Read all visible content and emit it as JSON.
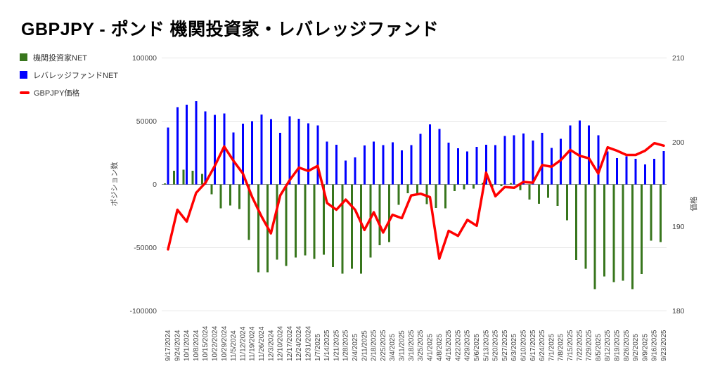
{
  "title": "GBPJPY - ポンド 機関投資家・レバレッジファンド",
  "legend": {
    "items": [
      {
        "label": "機関投資家NET",
        "color": "#38761d",
        "marker": "square"
      },
      {
        "label": "レバレッジファンドNET",
        "color": "#0000ff",
        "marker": "square"
      },
      {
        "label": "GBPJPY価格",
        "color": "#ff0000",
        "marker": "line"
      }
    ]
  },
  "colors": {
    "grid": "#e6e6e6",
    "zero_line": "#999999",
    "axis_text": "#444444",
    "background": "#ffffff"
  },
  "chart_data": {
    "type": "combo",
    "title": "GBPJPY - ポンド 機関投資家・レバレッジファンド",
    "legend_position": "top-left",
    "grid": true,
    "categories": [
      "9/17/2024",
      "9/24/2024",
      "10/1/2024",
      "10/8/2024",
      "10/15/2024",
      "10/22/2024",
      "10/29/2024",
      "11/5/2024",
      "11/12/2024",
      "11/19/2024",
      "11/26/2024",
      "12/3/2024",
      "12/10/2024",
      "12/17/2024",
      "12/24/2024",
      "12/31/2024",
      "1/7/2025",
      "1/14/2025",
      "1/21/2025",
      "1/28/2025",
      "2/4/2025",
      "2/11/2025",
      "2/18/2025",
      "2/25/2025",
      "3/4/2025",
      "3/11/2025",
      "3/18/2025",
      "3/25/2025",
      "4/1/2025",
      "4/8/2025",
      "4/15/2025",
      "4/22/2025",
      "4/29/2025",
      "5/6/2025",
      "5/13/2025",
      "5/20/2025",
      "5/27/2025",
      "6/3/2025",
      "6/10/2025",
      "6/17/2025",
      "6/24/2025",
      "7/1/2025",
      "7/8/2025",
      "7/15/2025",
      "7/22/2025",
      "7/29/2025",
      "8/5/2025",
      "8/12/2025",
      "8/19/2025",
      "8/26/2025",
      "9/2/2025",
      "9/9/2025",
      "9/16/2025",
      "9/23/2025"
    ],
    "series": [
      {
        "name": "機関投資家NET",
        "type": "bar",
        "axis": "left",
        "color": "#38761d",
        "values": [
          900,
          10700,
          11700,
          10800,
          8400,
          -7900,
          -19000,
          -16600,
          -19500,
          -44000,
          -69400,
          -69400,
          -59400,
          -64400,
          -57900,
          -56000,
          -58800,
          -55600,
          -65300,
          -70500,
          -66700,
          -70500,
          -57700,
          -48000,
          -45500,
          -16200,
          -7000,
          -7500,
          -15500,
          -18500,
          -18900,
          -5400,
          -4000,
          -3200,
          1500,
          -2000,
          -1500,
          1000,
          -4500,
          -12000,
          -15300,
          -10500,
          -17000,
          -28200,
          -59700,
          -66800,
          -82900,
          -72700,
          -77300,
          -76000,
          -82900,
          -70800,
          -44500,
          -45500
        ]
      },
      {
        "name": "レバレッジファンドNET",
        "type": "bar",
        "axis": "left",
        "color": "#0000ff",
        "values": [
          45000,
          61000,
          63000,
          65800,
          57900,
          55100,
          56000,
          41200,
          48000,
          50100,
          55400,
          51800,
          40800,
          53800,
          51900,
          48400,
          46800,
          34000,
          31500,
          18800,
          21400,
          30700,
          33800,
          31000,
          33200,
          27000,
          31000,
          39900,
          47500,
          43800,
          33100,
          28600,
          26100,
          29600,
          31400,
          31200,
          38400,
          38800,
          40300,
          34700,
          40700,
          28800,
          36000,
          46600,
          50500,
          46800,
          39000,
          26200,
          20800,
          22100,
          20300,
          15700,
          20300,
          26400
        ]
      },
      {
        "name": "GBPJPY価格",
        "type": "line",
        "axis": "right",
        "color": "#ff0000",
        "values": [
          187.3,
          192.0,
          190.6,
          194.0,
          195.2,
          197.2,
          199.5,
          197.8,
          196.3,
          193.5,
          191.2,
          189.2,
          193.7,
          195.5,
          197.0,
          196.6,
          197.2,
          192.8,
          192.0,
          193.2,
          192.0,
          189.6,
          191.7,
          189.3,
          191.4,
          191.0,
          193.7,
          193.9,
          193.5,
          186.2,
          189.5,
          188.9,
          190.8,
          190.1,
          196.4,
          193.6,
          194.7,
          194.6,
          195.3,
          195.2,
          197.3,
          197.1,
          197.9,
          199.1,
          198.4,
          198.1,
          196.3,
          199.4,
          199.0,
          198.5,
          198.5,
          199.0,
          199.9,
          199.6
        ]
      }
    ],
    "left_axis": {
      "title": "ポジション数",
      "min": -100000,
      "max": 100000,
      "ticks": [
        100000,
        50000,
        0,
        -50000,
        -100000
      ],
      "tick_labels": [
        "100000",
        "50000",
        "0",
        "-50000",
        "-100000"
      ]
    },
    "right_axis": {
      "title": "価格",
      "min": 180,
      "max": 210,
      "ticks": [
        210,
        200,
        190,
        180
      ],
      "tick_labels": [
        "210",
        "200",
        "190",
        "180"
      ]
    }
  }
}
